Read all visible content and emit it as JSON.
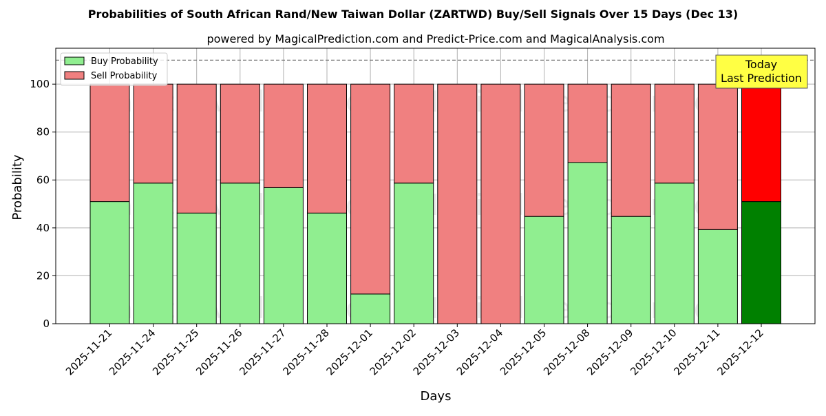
{
  "chart_data": {
    "type": "bar",
    "stacked": true,
    "title": "Probabilities of South African Rand/New Taiwan Dollar (ZARTWD) Buy/Sell Signals Over 15 Days (Dec 13)",
    "subtitle": "powered by MagicalPrediction.com and Predict-Price.com and MagicalAnalysis.com",
    "xlabel": "Days",
    "ylabel": "Probability",
    "ylim": [
      0,
      115
    ],
    "yticks": [
      0,
      20,
      40,
      60,
      80,
      100
    ],
    "grid": true,
    "reference_line": 110,
    "legend_position": "top-left",
    "categories": [
      "2025-11-21",
      "2025-11-24",
      "2025-11-25",
      "2025-11-26",
      "2025-11-27",
      "2025-11-28",
      "2025-12-01",
      "2025-12-02",
      "2025-12-03",
      "2025-12-04",
      "2025-12-05",
      "2025-12-08",
      "2025-12-09",
      "2025-12-10",
      "2025-12-11",
      "2025-12-12"
    ],
    "series": [
      {
        "name": "Buy Probability",
        "color": "#90ee90",
        "highlight_color": "#008000",
        "values": [
          51,
          58.7,
          46.2,
          58.7,
          56.8,
          46.2,
          12.4,
          58.7,
          0,
          0,
          44.8,
          67.3,
          44.8,
          58.7,
          39.3,
          51
        ]
      },
      {
        "name": "Sell Probability",
        "color": "#f08080",
        "highlight_color": "#ff0000",
        "values": [
          49,
          41.3,
          53.8,
          41.3,
          43.2,
          53.8,
          87.6,
          41.3,
          100,
          100,
          55.2,
          32.7,
          55.2,
          41.3,
          60.7,
          49
        ]
      }
    ],
    "annotation": {
      "lines": [
        "Today",
        "Last Prediction"
      ],
      "color": "#ffff44"
    },
    "watermarks": [
      "MagicalAnalysis.com",
      "MagicalPrediction.com"
    ]
  }
}
